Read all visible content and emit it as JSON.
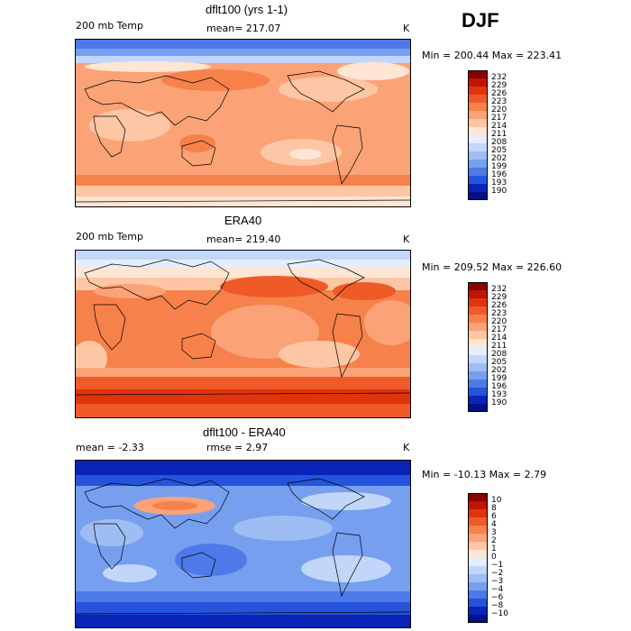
{
  "season": "DJF",
  "panels": [
    {
      "title": "dflt100 (yrs 1-1)",
      "left_label": "200 mb Temp",
      "center_label": "mean= 217.07",
      "right_label": "K",
      "minmax": "Min = 200.44  Max = 223.41"
    },
    {
      "title": "ERA40",
      "left_label": "200 mb Temp",
      "center_label": "mean= 219.40",
      "right_label": "K",
      "minmax": "Min = 209.52  Max = 226.60"
    },
    {
      "title": "dflt100 - ERA40",
      "left_label": "mean =   -2.33",
      "center_label": "rmse =   2.97",
      "right_label": "K",
      "minmax": "Min = -10.13  Max =    2.79"
    }
  ],
  "chart_data": [
    {
      "type": "heatmap",
      "title": "dflt100 (yrs 1-1)",
      "variable": "200 mb Temp",
      "units": "K",
      "mean": 217.07,
      "min": 200.44,
      "max": 223.41,
      "colorbar": {
        "levels": [
          "232",
          "229",
          "226",
          "223",
          "220",
          "217",
          "214",
          "211",
          "208",
          "205",
          "202",
          "199",
          "196",
          "193",
          "190"
        ],
        "colors": [
          "#8b0000",
          "#c01500",
          "#e0340c",
          "#f05a28",
          "#f7814b",
          "#fba277",
          "#fdc6a4",
          "#fee5d4",
          "#e3eeff",
          "#c2d6fa",
          "#9ebdf3",
          "#779ff0",
          "#4d7ae8",
          "#2553dc",
          "#0a24b8",
          "#00118a"
        ]
      }
    },
    {
      "type": "heatmap",
      "title": "ERA40",
      "variable": "200 mb Temp",
      "units": "K",
      "mean": 219.4,
      "min": 209.52,
      "max": 226.6,
      "colorbar": {
        "levels": [
          "232",
          "229",
          "226",
          "223",
          "220",
          "217",
          "214",
          "211",
          "208",
          "205",
          "202",
          "199",
          "196",
          "193",
          "190"
        ],
        "colors": [
          "#8b0000",
          "#c01500",
          "#e0340c",
          "#f05a28",
          "#f7814b",
          "#fba277",
          "#fdc6a4",
          "#fee5d4",
          "#e3eeff",
          "#c2d6fa",
          "#9ebdf3",
          "#779ff0",
          "#4d7ae8",
          "#2553dc",
          "#0a24b8",
          "#00118a"
        ]
      }
    },
    {
      "type": "heatmap",
      "title": "dflt100 - ERA40",
      "units": "K",
      "mean": -2.33,
      "rmse": 2.97,
      "min": -10.13,
      "max": 2.79,
      "colorbar": {
        "levels": [
          "10",
          "8",
          "6",
          "4",
          "3",
          "2",
          "1",
          "0",
          "−1",
          "−2",
          "−3",
          "−4",
          "−6",
          "−8",
          "−10"
        ],
        "colors": [
          "#8b0000",
          "#c01500",
          "#e0340c",
          "#f05a28",
          "#f7814b",
          "#fba277",
          "#fdc6a4",
          "#fee5d4",
          "#e3eeff",
          "#c2d6fa",
          "#9ebdf3",
          "#779ff0",
          "#4d7ae8",
          "#2553dc",
          "#0a24b8",
          "#00118a"
        ]
      }
    }
  ]
}
